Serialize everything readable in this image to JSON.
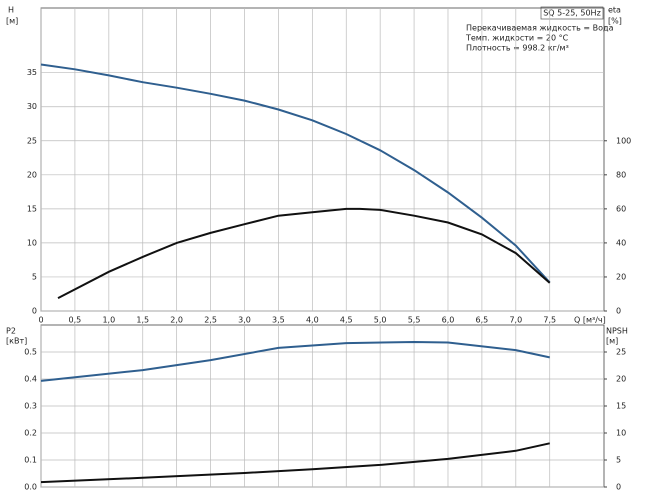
{
  "chart_data": [
    {
      "type": "line",
      "model": "SQ 5-25, 50Hz",
      "notes": [
        "Перекачиваемая жидкость = Вода",
        "Темп. жидкости = 20 °C",
        "Плотность = 998.2 кг/м³"
      ],
      "ylabel": "H",
      "yunit": "[м]",
      "y2label": "eta",
      "y2unit": "[%]",
      "xlabel": "Q [м³/ч]",
      "xlim": [
        0,
        8.3
      ],
      "ylim": [
        0,
        44.5
      ],
      "y2lim": [
        0,
        178
      ],
      "grid": true,
      "xticks": [
        0,
        {
          "value": 0.5,
          "label": "0,5"
        },
        {
          "value": 1,
          "label": "1,0"
        },
        {
          "value": 1.5,
          "label": "1,5"
        },
        {
          "value": 2,
          "label": "2,0"
        },
        {
          "value": 2.5,
          "label": "2,5"
        },
        {
          "value": 3,
          "label": "3,0"
        },
        {
          "value": 3.5,
          "label": "3,5"
        },
        {
          "value": 4,
          "label": "4,0"
        },
        {
          "value": 4.5,
          "label": "4,5"
        },
        {
          "value": 5,
          "label": "5,0"
        },
        {
          "value": 5.5,
          "label": "5,5"
        },
        {
          "value": 6,
          "label": "6,0"
        },
        {
          "value": 6.5,
          "label": "6,5"
        },
        {
          "value": 7,
          "label": "7,0"
        },
        {
          "value": 7.5,
          "label": "7,5"
        }
      ],
      "yticks": [
        0,
        5,
        10,
        15,
        20,
        25,
        30,
        35
      ],
      "y2ticks": [
        0,
        20,
        40,
        60,
        80,
        100
      ],
      "series": [
        {
          "color": "#2f5f8f",
          "x": [
            0,
            0.5,
            1,
            1.5,
            2,
            2.5,
            3,
            3.5,
            4,
            4.5,
            5,
            5.5,
            6,
            6.5,
            7,
            7.5
          ],
          "values": [
            36.2,
            35.5,
            34.6,
            33.6,
            32.8,
            31.9,
            30.9,
            29.6,
            28.0,
            26.0,
            23.6,
            20.7,
            17.4,
            13.7,
            9.6,
            4.2
          ]
        },
        {
          "color": "#111111",
          "axis": "y2",
          "x": [
            0.25,
            1,
            1.5,
            2,
            2.5,
            3,
            3.5,
            4,
            4.5,
            4.7,
            5,
            5.5,
            6,
            6.5,
            7,
            7.5
          ],
          "values": [
            7.6,
            23,
            31.8,
            40,
            45.9,
            51,
            56,
            58,
            60,
            60,
            59.4,
            56,
            52,
            45,
            34,
            16.5
          ]
        }
      ]
    },
    {
      "type": "line",
      "ylabel": "P2",
      "yunit": "[кВт]",
      "y2label": "NPSH",
      "y2unit": "[м]",
      "xlim": [
        0,
        8.3
      ],
      "ylim": [
        0,
        0.6
      ],
      "y2lim": [
        0,
        30
      ],
      "grid": true,
      "yticks": [
        {
          "value": 0,
          "label": "0.0"
        },
        0.1,
        0.2,
        0.3,
        0.4,
        0.5
      ],
      "y2ticks": [
        0,
        5,
        10,
        15,
        20,
        25
      ],
      "series": [
        {
          "color": "#2f5f8f",
          "x": [
            0,
            1.5,
            2.5,
            3.5,
            4.5,
            5.5,
            6,
            7,
            7.5
          ],
          "values": [
            0.393,
            0.433,
            0.47,
            0.515,
            0.533,
            0.537,
            0.535,
            0.507,
            0.48
          ]
        },
        {
          "color": "#111111",
          "axis": "y2",
          "x": [
            0,
            1.5,
            3,
            4,
            5,
            6,
            7,
            7.5
          ],
          "values": [
            0.9,
            1.7,
            2.6,
            3.3,
            4.1,
            5.2,
            6.7,
            8.1
          ]
        }
      ]
    }
  ]
}
